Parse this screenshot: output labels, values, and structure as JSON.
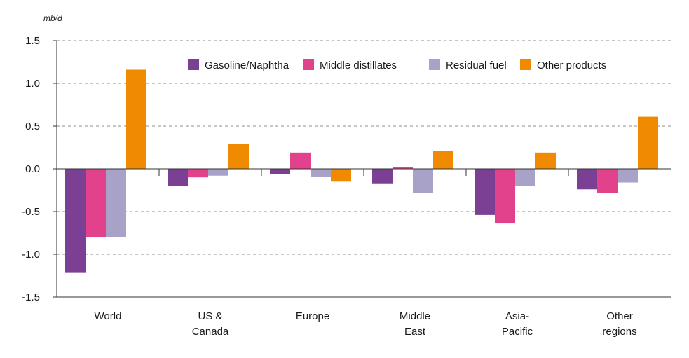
{
  "chart_data": {
    "type": "bar",
    "unit_label": "mb/d",
    "categories": [
      [
        "World"
      ],
      [
        "US &",
        "Canada"
      ],
      [
        "Europe"
      ],
      [
        "Middle",
        "East"
      ],
      [
        "Asia-",
        "Pacific"
      ],
      [
        "Other",
        "regions"
      ]
    ],
    "series": [
      {
        "name": "Gasoline/Naphtha",
        "color": "#7b3f94",
        "values": [
          -1.21,
          -0.2,
          -0.06,
          -0.17,
          -0.54,
          -0.24
        ]
      },
      {
        "name": "Middle distillates",
        "color": "#e2428b",
        "values": [
          -0.8,
          -0.1,
          0.19,
          0.02,
          -0.64,
          -0.28
        ]
      },
      {
        "name": "Residual fuel",
        "color": "#a9a2c8",
        "values": [
          -0.8,
          -0.08,
          -0.09,
          -0.28,
          -0.2,
          -0.16
        ]
      },
      {
        "name": "Other products",
        "color": "#f08a00",
        "values": [
          1.16,
          0.29,
          -0.15,
          0.21,
          0.19,
          0.61
        ]
      }
    ],
    "y_ticks": [
      "1.5",
      "1.0",
      "0.5",
      "0.0",
      "-0.5",
      "-1.0",
      "-1.5"
    ],
    "ylim": [
      -1.5,
      1.5
    ],
    "grid": "horizontal dashed",
    "legend_position": "top-right"
  }
}
